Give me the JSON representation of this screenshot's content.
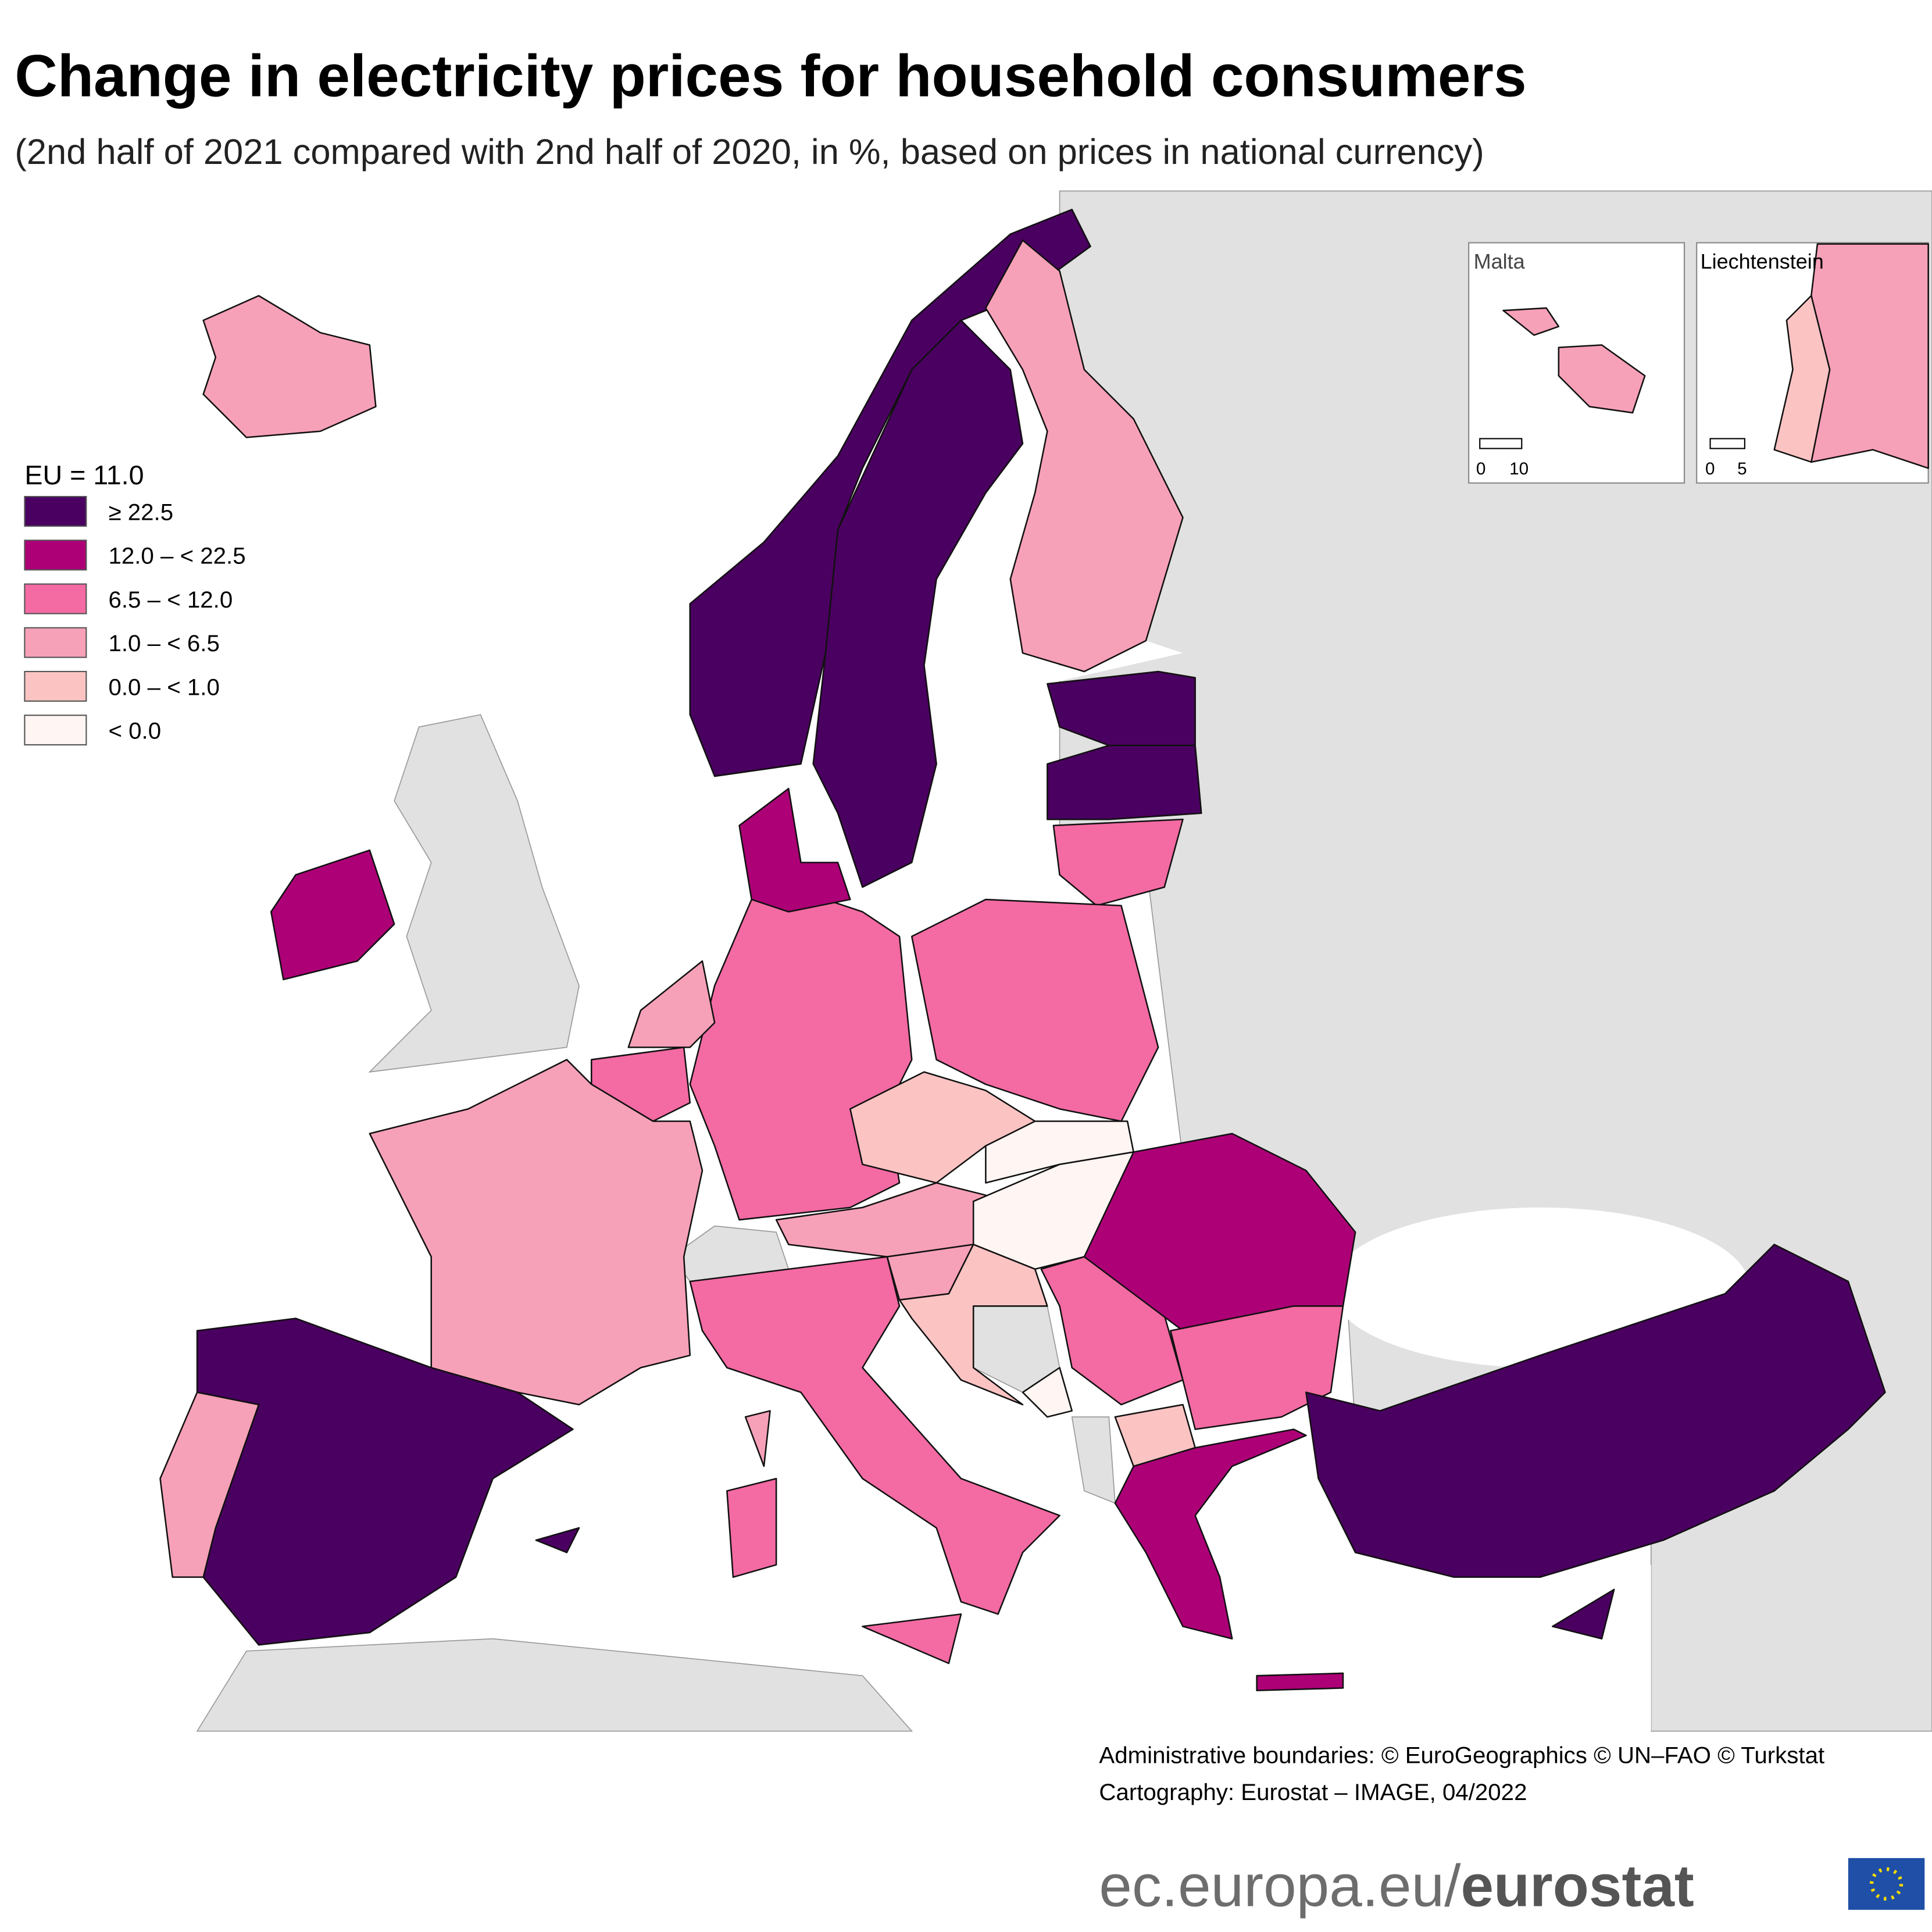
{
  "title": "Change in electricity prices for household consumers",
  "subtitle": "(2nd half of 2021 compared with 2nd half of 2020, in %, based on prices in national currency)",
  "legend": {
    "title": "EU = 11.0",
    "items": [
      {
        "label": "≥ 22.5",
        "color": "#4a0060"
      },
      {
        "label": "12.0 – < 22.5",
        "color": "#ad0077"
      },
      {
        "label": "6.5 – < 12.0",
        "color": "#f46aa3"
      },
      {
        "label": "1.0 – < 6.5",
        "color": "#f7a1b8"
      },
      {
        "label": "0.0 – < 1.0",
        "color": "#fbc4c3"
      },
      {
        "label": "< 0.0",
        "color": "#fff5f2"
      }
    ]
  },
  "insets": [
    {
      "title": "Malta",
      "scale": [
        "0",
        "10"
      ]
    },
    {
      "title": "Liechtenstein",
      "scale": [
        "0",
        "5"
      ]
    }
  ],
  "credits": [
    "Administrative boundaries: © EuroGeographics © UN–FAO © Turkstat",
    "Cartography: Eurostat – IMAGE, 04/2022"
  ],
  "footer": {
    "site": "ec.europa.eu/",
    "brand": "eurostat"
  }
}
